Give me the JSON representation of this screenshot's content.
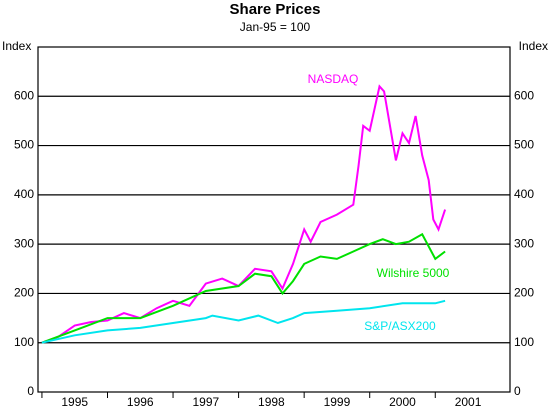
{
  "chart_data": {
    "type": "line",
    "title": "Share Prices",
    "subtitle": "Jan-95 = 100",
    "ylabel": "Index",
    "y2label": "Index",
    "xlim": [
      1994.94,
      2002.14
    ],
    "xticks": [
      1995,
      1996,
      1997,
      1998,
      1999,
      2000,
      2001
    ],
    "ylim": [
      0,
      700
    ],
    "yticks": [
      0,
      100,
      200,
      300,
      400,
      500,
      600
    ],
    "y2lim": [
      0,
      700
    ],
    "y2ticks": [
      0,
      100,
      200,
      300,
      400,
      500,
      600
    ],
    "grid": true,
    "series": [
      {
        "name": "NASDAQ",
        "color": "#ff00ff",
        "x": [
          1995.0,
          1995.25,
          1995.5,
          1995.75,
          1996.0,
          1996.25,
          1996.5,
          1996.75,
          1997.0,
          1997.25,
          1997.5,
          1997.75,
          1998.0,
          1998.25,
          1998.5,
          1998.67,
          1998.83,
          1999.0,
          1999.1,
          1999.25,
          1999.5,
          1999.75,
          1999.83,
          1999.9,
          2000.0,
          2000.15,
          2000.22,
          2000.4,
          2000.5,
          2000.6,
          2000.7,
          2000.8,
          2000.9,
          2000.97,
          2001.05,
          2001.15
        ],
        "values": [
          100,
          112,
          135,
          142,
          145,
          160,
          150,
          170,
          185,
          175,
          220,
          230,
          215,
          250,
          245,
          210,
          260,
          330,
          305,
          345,
          360,
          380,
          460,
          540,
          530,
          620,
          610,
          470,
          525,
          505,
          560,
          480,
          430,
          350,
          330,
          370
        ]
      },
      {
        "name": "Wilshire 5000",
        "color": "#00e000",
        "x": [
          1995.0,
          1995.5,
          1996.0,
          1996.5,
          1997.0,
          1997.5,
          1998.0,
          1998.25,
          1998.5,
          1998.67,
          1998.83,
          1999.0,
          1999.25,
          1999.5,
          1999.75,
          2000.0,
          2000.2,
          2000.4,
          2000.6,
          2000.8,
          2001.0,
          2001.15
        ],
        "values": [
          100,
          125,
          150,
          150,
          175,
          205,
          215,
          240,
          235,
          200,
          225,
          260,
          275,
          270,
          285,
          300,
          310,
          300,
          305,
          320,
          270,
          285
        ]
      },
      {
        "name": "S&P/ASX200",
        "color": "#00e5ee",
        "x": [
          1995.0,
          1995.5,
          1996.0,
          1996.5,
          1997.0,
          1997.5,
          1997.6,
          1998.0,
          1998.3,
          1998.6,
          1998.83,
          1999.0,
          1999.5,
          2000.0,
          2000.5,
          2001.0,
          2001.15
        ],
        "values": [
          100,
          115,
          125,
          130,
          140,
          150,
          155,
          145,
          155,
          140,
          150,
          160,
          165,
          170,
          180,
          180,
          185
        ]
      }
    ]
  }
}
